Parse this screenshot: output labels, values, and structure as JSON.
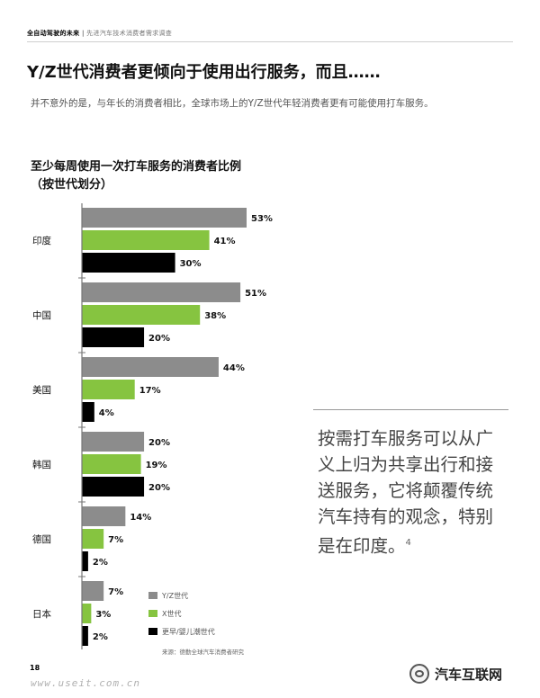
{
  "header": {
    "doc_title": "全自动驾驶的未来",
    "separator": "|",
    "doc_subtitle": "先进汽车技术消费者需求调查"
  },
  "headline": "Y/Z世代消费者更倾向于使用出行服务，而且……",
  "intro": "并不意外的是，与年长的消费者相比，全球市场上的Y/Z世代年轻消费者更有可能使用打车服务。",
  "chart_title_line1": "至少每周使用一次打车服务的消费者比例",
  "chart_title_line2": "（按世代划分）",
  "quote": {
    "text": "按需打车服务可以从广义上归为共享出行和接送服务，它将颠覆传统汽车持有的观念，特别是在印度。",
    "footnote": "4"
  },
  "legend": [
    {
      "label": "Y/Z世代",
      "color": "#8c8c8c"
    },
    {
      "label": "X世代",
      "color": "#86c440"
    },
    {
      "label": "更早/婴儿潮世代",
      "color": "#000000"
    }
  ],
  "source": "来源：德勤全球汽车消费者研究",
  "page_number": "18",
  "watermark_url": "www.useit.com.cn",
  "watermark_brand": "汽车互联网",
  "chart_data": {
    "type": "bar",
    "orientation": "horizontal",
    "categories": [
      "印度",
      "中国",
      "美国",
      "韩国",
      "德国",
      "日本"
    ],
    "series": [
      {
        "name": "Y/Z世代",
        "color": "#8c8c8c",
        "values": [
          53,
          51,
          44,
          20,
          14,
          7
        ]
      },
      {
        "name": "X世代",
        "color": "#86c440",
        "values": [
          41,
          38,
          17,
          19,
          7,
          3
        ]
      },
      {
        "name": "更早/婴儿潮世代",
        "color": "#000000",
        "values": [
          30,
          20,
          4,
          20,
          2,
          2
        ]
      }
    ],
    "value_suffix": "%",
    "xlim": [
      0,
      60
    ]
  }
}
